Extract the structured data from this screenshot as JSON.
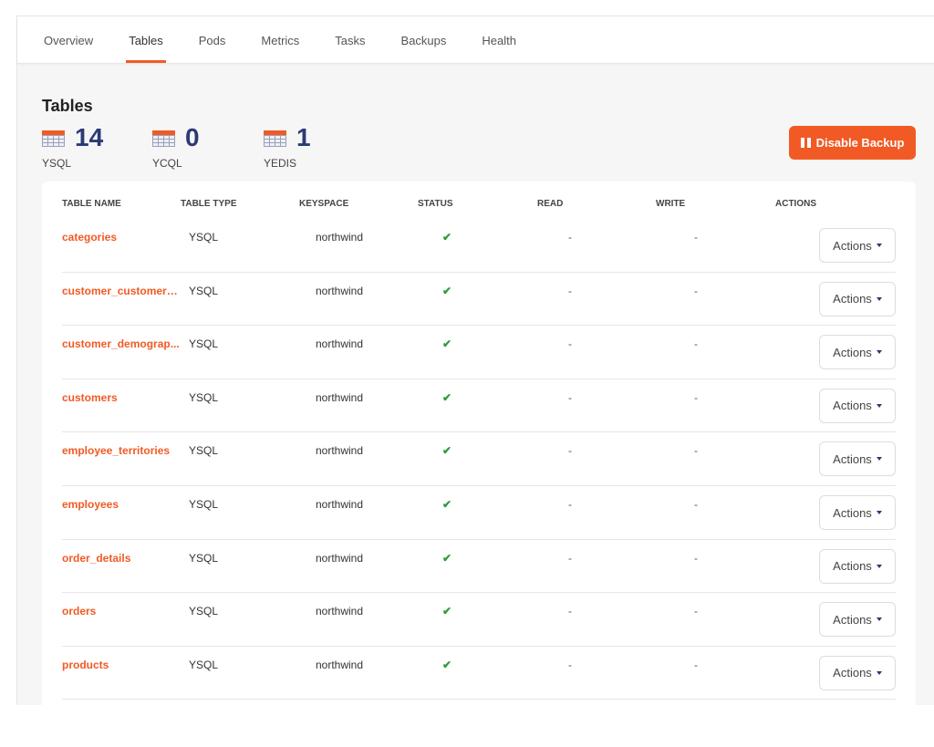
{
  "tabs": [
    "Overview",
    "Tables",
    "Pods",
    "Metrics",
    "Tasks",
    "Backups",
    "Health"
  ],
  "active_tab": "Tables",
  "page_title": "Tables",
  "stats": [
    {
      "count": "14",
      "label": "YSQL"
    },
    {
      "count": "0",
      "label": "YCQL"
    },
    {
      "count": "1",
      "label": "YEDIS"
    }
  ],
  "disable_backup_label": "Disable Backup",
  "accent_color": "#f15a24",
  "columns": [
    "TABLE NAME",
    "TABLE TYPE",
    "KEYSPACE",
    "STATUS",
    "READ",
    "WRITE",
    "ACTIONS"
  ],
  "rows": [
    {
      "name": "categories",
      "type": "YSQL",
      "keyspace": "northwind",
      "status": "✔",
      "read": "-",
      "write": "-",
      "action": "Actions"
    },
    {
      "name": "customer_customer_...",
      "type": "YSQL",
      "keyspace": "northwind",
      "status": "✔",
      "read": "-",
      "write": "-",
      "action": "Actions"
    },
    {
      "name": "customer_demograp...",
      "type": "YSQL",
      "keyspace": "northwind",
      "status": "✔",
      "read": "-",
      "write": "-",
      "action": "Actions"
    },
    {
      "name": "customers",
      "type": "YSQL",
      "keyspace": "northwind",
      "status": "✔",
      "read": "-",
      "write": "-",
      "action": "Actions"
    },
    {
      "name": "employee_territories",
      "type": "YSQL",
      "keyspace": "northwind",
      "status": "✔",
      "read": "-",
      "write": "-",
      "action": "Actions"
    },
    {
      "name": "employees",
      "type": "YSQL",
      "keyspace": "northwind",
      "status": "✔",
      "read": "-",
      "write": "-",
      "action": "Actions"
    },
    {
      "name": "order_details",
      "type": "YSQL",
      "keyspace": "northwind",
      "status": "✔",
      "read": "-",
      "write": "-",
      "action": "Actions"
    },
    {
      "name": "orders",
      "type": "YSQL",
      "keyspace": "northwind",
      "status": "✔",
      "read": "-",
      "write": "-",
      "action": "Actions"
    },
    {
      "name": "products",
      "type": "YSQL",
      "keyspace": "northwind",
      "status": "✔",
      "read": "-",
      "write": "-",
      "action": "Actions"
    }
  ]
}
